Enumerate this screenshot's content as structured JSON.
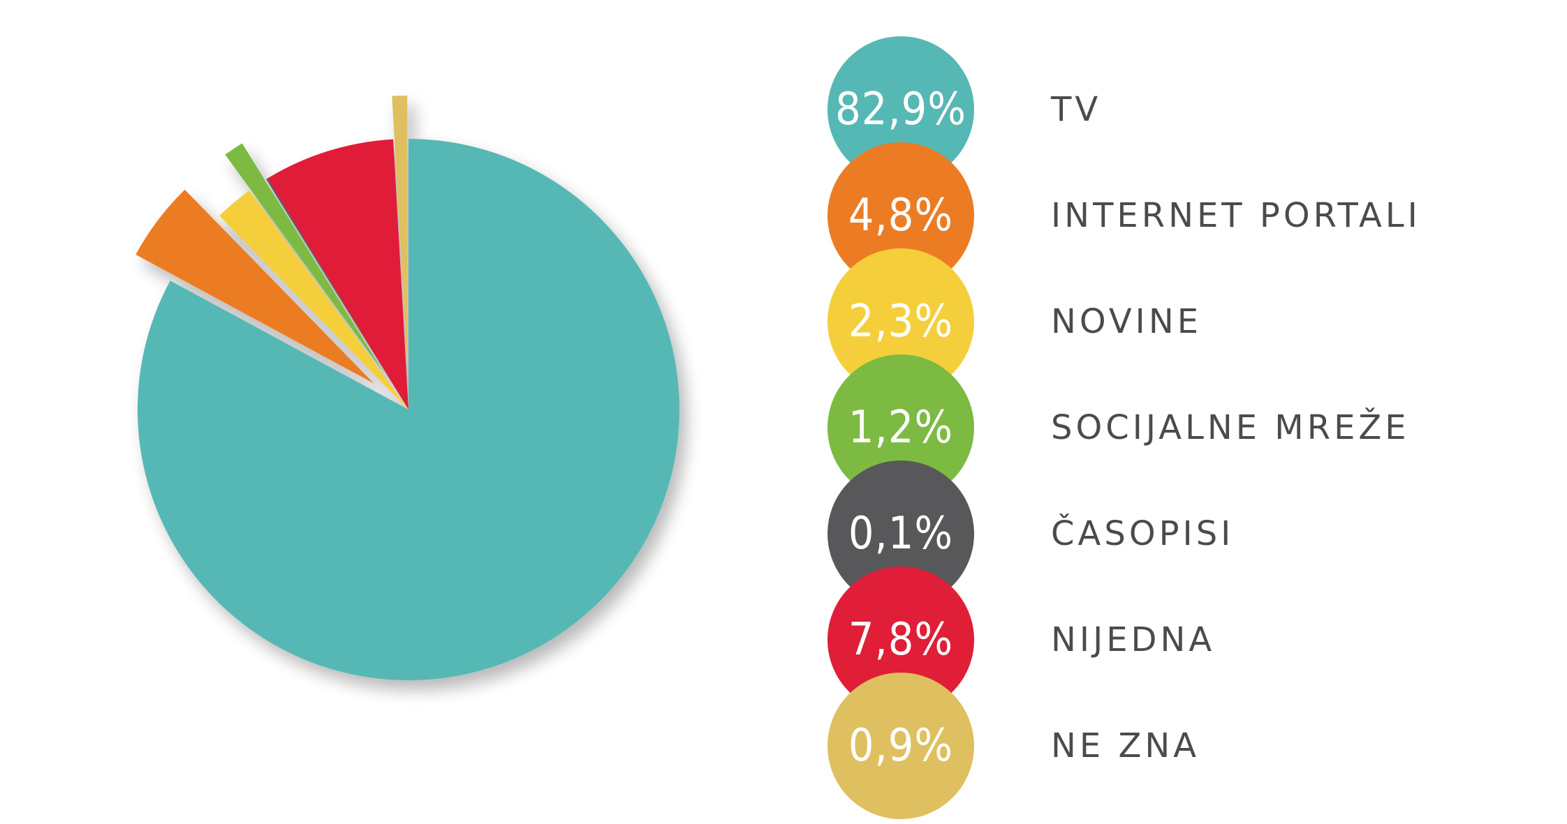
{
  "chart_data": {
    "type": "pie",
    "title": "",
    "unit": "%",
    "slices": [
      {
        "label": "TV",
        "value": 82.9,
        "value_label": "82,9%",
        "color": "#56b8b5"
      },
      {
        "label": "INTERNET PORTALI",
        "value": 4.8,
        "value_label": "4,8%",
        "color": "#ec7c24"
      },
      {
        "label": "NOVINE",
        "value": 2.3,
        "value_label": "2,3%",
        "color": "#f5cf3b"
      },
      {
        "label": "SOCIJALNE MREŽE",
        "value": 1.2,
        "value_label": "1,2%",
        "color": "#7cba42"
      },
      {
        "label": "ČASOPISI",
        "value": 0.1,
        "value_label": "0,1%",
        "color": "#58585a"
      },
      {
        "label": "NIJEDNA",
        "value": 7.8,
        "value_label": "7,8%",
        "color": "#e01e37"
      },
      {
        "label": "NE ZNA",
        "value": 0.9,
        "value_label": "0,9%",
        "color": "#dfc060"
      }
    ],
    "legend_position": "right",
    "exploded_slices": [
      "INTERNET PORTALI",
      "SOCIJALNE MREŽE",
      "NE ZNA"
    ]
  }
}
